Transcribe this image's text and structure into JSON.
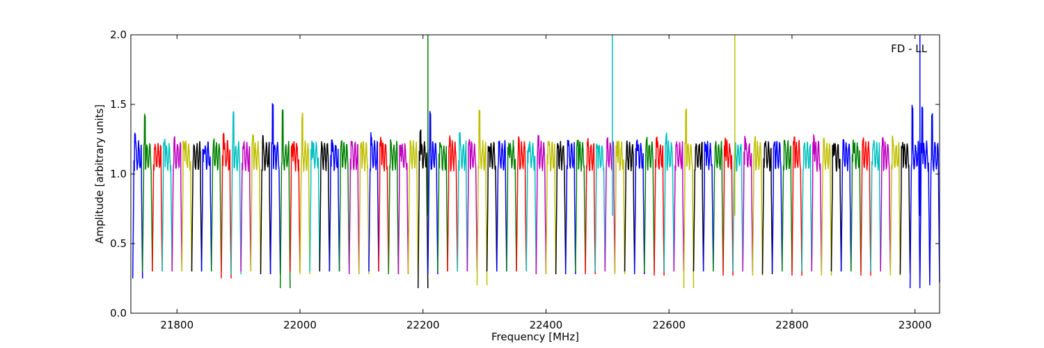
{
  "chart_data": {
    "type": "line",
    "title": "",
    "annotation": "FD - LL",
    "xlabel": "Frequency [MHz]",
    "ylabel": "Amplitude [arbitrary units]",
    "xlim": [
      21725,
      23040
    ],
    "ylim": [
      0.0,
      2.0
    ],
    "xticks": [
      21800,
      22000,
      22200,
      22400,
      22600,
      22800,
      23000
    ],
    "yticks": [
      0.0,
      0.5,
      1.0,
      1.5,
      2.0
    ],
    "xtick_labels": [
      "21800",
      "22000",
      "22200",
      "22400",
      "22600",
      "22800",
      "23000"
    ],
    "ytick_labels": [
      "0.0",
      "0.5",
      "1.0",
      "1.5",
      "2.0"
    ],
    "grid": false,
    "legend": "none",
    "color_cycle": [
      "#0000ff",
      "#008000",
      "#ff0000",
      "#00bfbf",
      "#bf00bf",
      "#bfbf00",
      "#000000"
    ],
    "channel_width_mhz": 16,
    "channels": [
      {
        "start": 21728,
        "color": "#0000ff",
        "peak": 1.3,
        "min": 0.25
      },
      {
        "start": 21744,
        "color": "#008000",
        "peak": 1.45,
        "min": 0.3
      },
      {
        "start": 21760,
        "color": "#ff0000",
        "peak": 1.23,
        "min": 0.3
      },
      {
        "start": 21776,
        "color": "#00bfbf",
        "peak": 1.25,
        "min": 0.3
      },
      {
        "start": 21792,
        "color": "#bf00bf",
        "peak": 1.27,
        "min": 0.3
      },
      {
        "start": 21808,
        "color": "#bfbf00",
        "peak": 1.24,
        "min": 0.3
      },
      {
        "start": 21824,
        "color": "#000000",
        "peak": 1.2,
        "min": 0.3
      },
      {
        "start": 21840,
        "color": "#0000ff",
        "peak": 1.2,
        "min": 0.3
      },
      {
        "start": 21856,
        "color": "#008000",
        "peak": 1.26,
        "min": 0.3
      },
      {
        "start": 21872,
        "color": "#ff0000",
        "peak": 1.3,
        "min": 0.25
      },
      {
        "start": 21888,
        "color": "#00bfbf",
        "peak": 1.45,
        "min": 0.28
      },
      {
        "start": 21904,
        "color": "#bf00bf",
        "peak": 1.22,
        "min": 0.3
      },
      {
        "start": 21920,
        "color": "#bfbf00",
        "peak": 1.3,
        "min": 0.3
      },
      {
        "start": 21936,
        "color": "#000000",
        "peak": 1.28,
        "min": 0.28
      },
      {
        "start": 21952,
        "color": "#0000ff",
        "peak": 1.52,
        "min": 0.28
      },
      {
        "start": 21968,
        "color": "#008000",
        "peak": 1.47,
        "min": 0.18
      },
      {
        "start": 21984,
        "color": "#ff0000",
        "peak": 1.23,
        "min": 0.3
      },
      {
        "start": 22000,
        "color": "#bfbf00",
        "peak": 1.44,
        "min": 0.28
      },
      {
        "start": 22016,
        "color": "#00bfbf",
        "peak": 1.25,
        "min": 0.3
      },
      {
        "start": 22032,
        "color": "#000000",
        "peak": 1.22,
        "min": 0.3
      },
      {
        "start": 22048,
        "color": "#0000ff",
        "peak": 1.25,
        "min": 0.3
      },
      {
        "start": 22064,
        "color": "#008000",
        "peak": 1.25,
        "min": 0.3
      },
      {
        "start": 22080,
        "color": "#bf00bf",
        "peak": 1.25,
        "min": 0.28
      },
      {
        "start": 22096,
        "color": "#bfbf00",
        "peak": 1.23,
        "min": 0.28
      },
      {
        "start": 22112,
        "color": "#0000ff",
        "peak": 1.3,
        "min": 0.3
      },
      {
        "start": 22128,
        "color": "#ff0000",
        "peak": 1.28,
        "min": 0.3
      },
      {
        "start": 22144,
        "color": "#008000",
        "peak": 1.25,
        "min": 0.28
      },
      {
        "start": 22160,
        "color": "#bf00bf",
        "peak": 1.22,
        "min": 0.28
      },
      {
        "start": 22176,
        "color": "#bfbf00",
        "peak": 1.25,
        "min": 0.28
      },
      {
        "start": 22192,
        "color": "#000000",
        "peak": 1.32,
        "min": 0.18
      },
      {
        "start": 22208,
        "color": "#0000ff",
        "peak": 1.47,
        "min": 0.28
      },
      {
        "start": 22224,
        "color": "#008000",
        "peak": 1.25,
        "min": 0.3
      },
      {
        "start": 22240,
        "color": "#ff0000",
        "peak": 1.28,
        "min": 0.3
      },
      {
        "start": 22256,
        "color": "#00bfbf",
        "peak": 1.3,
        "min": 0.3
      },
      {
        "start": 22272,
        "color": "#bf00bf",
        "peak": 1.25,
        "min": 0.3
      },
      {
        "start": 22288,
        "color": "#bfbf00",
        "peak": 1.47,
        "min": 0.2
      },
      {
        "start": 22304,
        "color": "#000000",
        "peak": 1.22,
        "min": 0.3
      },
      {
        "start": 22320,
        "color": "#0000ff",
        "peak": 1.25,
        "min": 0.3
      },
      {
        "start": 22336,
        "color": "#008000",
        "peak": 1.22,
        "min": 0.3
      },
      {
        "start": 22352,
        "color": "#ff0000",
        "peak": 1.27,
        "min": 0.3
      },
      {
        "start": 22368,
        "color": "#00bfbf",
        "peak": 1.22,
        "min": 0.3
      },
      {
        "start": 22384,
        "color": "#bf00bf",
        "peak": 1.29,
        "min": 0.28
      },
      {
        "start": 22400,
        "color": "#bfbf00",
        "peak": 1.25,
        "min": 0.28
      },
      {
        "start": 22416,
        "color": "#000000",
        "peak": 1.23,
        "min": 0.28
      },
      {
        "start": 22432,
        "color": "#0000ff",
        "peak": 1.25,
        "min": 0.28
      },
      {
        "start": 22448,
        "color": "#008000",
        "peak": 1.25,
        "min": 0.3
      },
      {
        "start": 22464,
        "color": "#ff0000",
        "peak": 1.26,
        "min": 0.28
      },
      {
        "start": 22480,
        "color": "#00bfbf",
        "peak": 1.22,
        "min": 0.3
      },
      {
        "start": 22496,
        "color": "#bf00bf",
        "peak": 1.27,
        "min": 0.3
      },
      {
        "start": 22512,
        "color": "#bfbf00",
        "peak": 1.25,
        "min": 0.28
      },
      {
        "start": 22528,
        "color": "#000000",
        "peak": 1.22,
        "min": 0.3
      },
      {
        "start": 22544,
        "color": "#0000ff",
        "peak": 1.25,
        "min": 0.28
      },
      {
        "start": 22560,
        "color": "#008000",
        "peak": 1.27,
        "min": 0.3
      },
      {
        "start": 22576,
        "color": "#ff0000",
        "peak": 1.28,
        "min": 0.27
      },
      {
        "start": 22592,
        "color": "#00bfbf",
        "peak": 1.3,
        "min": 0.3
      },
      {
        "start": 22608,
        "color": "#bf00bf",
        "peak": 1.24,
        "min": 0.3
      },
      {
        "start": 22624,
        "color": "#bfbf00",
        "peak": 1.47,
        "min": 0.18
      },
      {
        "start": 22640,
        "color": "#000000",
        "peak": 1.23,
        "min": 0.3
      },
      {
        "start": 22656,
        "color": "#0000ff",
        "peak": 1.22,
        "min": 0.3
      },
      {
        "start": 22672,
        "color": "#008000",
        "peak": 1.25,
        "min": 0.3
      },
      {
        "start": 22688,
        "color": "#ff0000",
        "peak": 1.27,
        "min": 0.27
      },
      {
        "start": 22704,
        "color": "#00bfbf",
        "peak": 1.23,
        "min": 0.3
      },
      {
        "start": 22720,
        "color": "#bf00bf",
        "peak": 1.28,
        "min": 0.3
      },
      {
        "start": 22736,
        "color": "#bfbf00",
        "peak": 1.28,
        "min": 0.27
      },
      {
        "start": 22752,
        "color": "#000000",
        "peak": 1.23,
        "min": 0.28
      },
      {
        "start": 22768,
        "color": "#0000ff",
        "peak": 1.25,
        "min": 0.3
      },
      {
        "start": 22784,
        "color": "#008000",
        "peak": 1.25,
        "min": 0.3
      },
      {
        "start": 22800,
        "color": "#ff0000",
        "peak": 1.27,
        "min": 0.27
      },
      {
        "start": 22816,
        "color": "#00bfbf",
        "peak": 1.22,
        "min": 0.3
      },
      {
        "start": 22832,
        "color": "#bf00bf",
        "peak": 1.28,
        "min": 0.3
      },
      {
        "start": 22848,
        "color": "#bfbf00",
        "peak": 1.28,
        "min": 0.27
      },
      {
        "start": 22864,
        "color": "#000000",
        "peak": 1.22,
        "min": 0.3
      },
      {
        "start": 22880,
        "color": "#0000ff",
        "peak": 1.25,
        "min": 0.3
      },
      {
        "start": 22896,
        "color": "#008000",
        "peak": 1.25,
        "min": 0.3
      },
      {
        "start": 22912,
        "color": "#ff0000",
        "peak": 1.27,
        "min": 0.27
      },
      {
        "start": 22928,
        "color": "#00bfbf",
        "peak": 1.22,
        "min": 0.3
      },
      {
        "start": 22944,
        "color": "#bf00bf",
        "peak": 1.28,
        "min": 0.3
      },
      {
        "start": 22960,
        "color": "#bfbf00",
        "peak": 1.29,
        "min": 0.27
      },
      {
        "start": 22976,
        "color": "#000000",
        "peak": 1.23,
        "min": 0.28
      },
      {
        "start": 22992,
        "color": "#0000ff",
        "peak": 1.5,
        "min": 0.18
      },
      {
        "start": 23008,
        "color": "#0000ff",
        "peak": 1.48,
        "min": 0.2
      },
      {
        "start": 23024,
        "color": "#0000ff",
        "peak": 1.45,
        "min": 0.22
      }
    ],
    "spikes": [
      {
        "x": 22208,
        "y": 2.0,
        "color": "#008000"
      },
      {
        "x": 22508,
        "y": 2.0,
        "color": "#00bfbf"
      },
      {
        "x": 22707,
        "y": 2.0,
        "color": "#bfbf00"
      },
      {
        "x": 23008,
        "y": 2.0,
        "color": "#0000ff"
      }
    ]
  }
}
